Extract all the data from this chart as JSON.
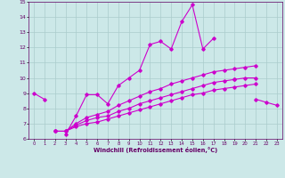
{
  "x": [
    0,
    1,
    2,
    3,
    4,
    5,
    6,
    7,
    8,
    9,
    10,
    11,
    12,
    13,
    14,
    15,
    16,
    17,
    18,
    19,
    20,
    21,
    22,
    23
  ],
  "line1": [
    9.0,
    8.6,
    null,
    6.3,
    7.5,
    8.9,
    8.9,
    8.3,
    9.5,
    10.0,
    10.5,
    12.2,
    12.4,
    11.9,
    13.7,
    14.8,
    11.9,
    12.6,
    null,
    9.9,
    null,
    8.6,
    8.4,
    8.2
  ],
  "line2": [
    null,
    null,
    6.5,
    6.5,
    7.0,
    7.4,
    7.6,
    7.8,
    8.2,
    8.5,
    8.8,
    9.1,
    9.3,
    9.6,
    9.8,
    10.0,
    10.2,
    10.4,
    10.5,
    10.6,
    10.7,
    10.8,
    null,
    null
  ],
  "line3": [
    null,
    null,
    6.5,
    6.5,
    6.9,
    7.2,
    7.4,
    7.5,
    7.8,
    8.0,
    8.3,
    8.5,
    8.7,
    8.9,
    9.1,
    9.3,
    9.5,
    9.7,
    9.8,
    9.9,
    10.0,
    10.0,
    null,
    null
  ],
  "line4": [
    null,
    null,
    6.5,
    6.5,
    6.8,
    7.0,
    7.1,
    7.3,
    7.5,
    7.7,
    7.9,
    8.1,
    8.3,
    8.5,
    8.7,
    8.9,
    9.0,
    9.2,
    9.3,
    9.4,
    9.5,
    9.6,
    null,
    null
  ],
  "xlim": [
    -0.5,
    23.5
  ],
  "ylim": [
    6,
    15
  ],
  "yticks": [
    6,
    7,
    8,
    9,
    10,
    11,
    12,
    13,
    14,
    15
  ],
  "xticks": [
    0,
    1,
    2,
    3,
    4,
    5,
    6,
    7,
    8,
    9,
    10,
    11,
    12,
    13,
    14,
    15,
    16,
    17,
    18,
    19,
    20,
    21,
    22,
    23
  ],
  "line_color": "#cc00cc",
  "bg_color": "#cce8e8",
  "grid_color": "#aacccc",
  "xlabel": "Windchill (Refroidissement éolien,°C)",
  "xlabel_color": "#660066",
  "tick_color": "#660066"
}
